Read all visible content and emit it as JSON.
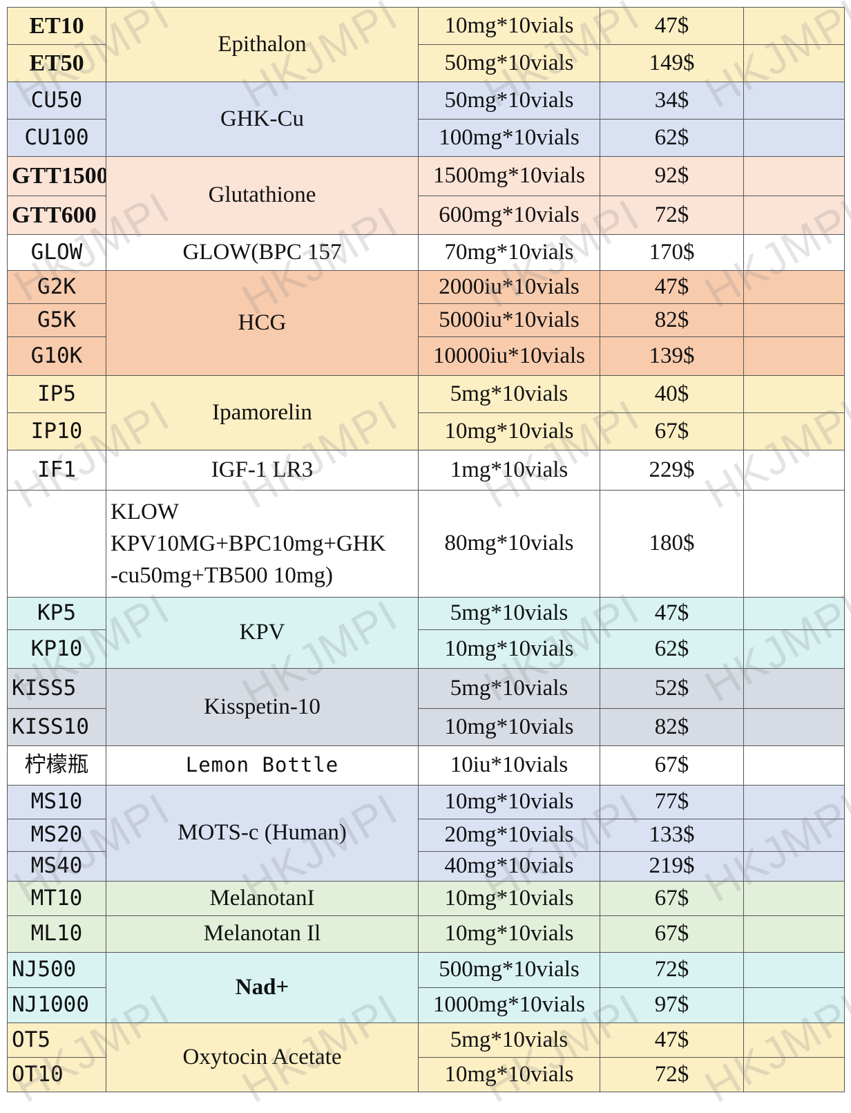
{
  "rows": [
    {
      "code": "ET10",
      "name": "Epithalon",
      "spec": "10mg*10vials",
      "price": "47$"
    },
    {
      "code": "ET50",
      "spec": "50mg*10vials",
      "price": "149$"
    },
    {
      "code": "CU50",
      "name": "GHK-Cu",
      "spec": "50mg*10vials",
      "price": "34$"
    },
    {
      "code": "CU100",
      "spec": "100mg*10vials",
      "price": "62$"
    },
    {
      "code": "GTT1500",
      "name": "Glutathione",
      "spec": "1500mg*10vials",
      "price": "92$"
    },
    {
      "code": "GTT600",
      "spec": "600mg*10vials",
      "price": "72$"
    },
    {
      "code": "GLOW",
      "name": "GLOW(BPC 157",
      "spec": "70mg*10vials",
      "price": "170$"
    },
    {
      "code": "G2K",
      "name": "HCG",
      "spec": "2000iu*10vials",
      "price": "47$"
    },
    {
      "code": "G5K",
      "spec": "5000iu*10vials",
      "price": "82$"
    },
    {
      "code": "G10K",
      "spec": "10000iu*10vials",
      "price": "139$"
    },
    {
      "code": "IP5",
      "name": "Ipamorelin",
      "spec": "5mg*10vials",
      "price": "40$"
    },
    {
      "code": "IP10",
      "spec": "10mg*10vials",
      "price": "67$"
    },
    {
      "code": "IF1",
      "name": "IGF-1 LR3",
      "spec": "1mg*10vials",
      "price": "229$"
    },
    {
      "code": "",
      "name_lines": [
        "KLOW",
        "KPV10MG+BPC10mg+GHK",
        "-cu50mg+TB500 10mg)"
      ],
      "spec": "80mg*10vials",
      "price": "180$"
    },
    {
      "code": "KP5",
      "name": "KPV",
      "spec": "5mg*10vials",
      "price": "47$"
    },
    {
      "code": "KP10",
      "spec": "10mg*10vials",
      "price": "62$"
    },
    {
      "code": "KISS5",
      "name": "Kisspetin-10",
      "spec": "5mg*10vials",
      "price": "52$"
    },
    {
      "code": "KISS10",
      "spec": "10mg*10vials",
      "price": "82$"
    },
    {
      "code": "柠檬瓶",
      "name": "Lemon Bottle",
      "spec": "10iu*10vials",
      "price": "67$"
    },
    {
      "code": "MS10",
      "name": "MOTS-c (Human)",
      "spec": "10mg*10vials",
      "price": "77$"
    },
    {
      "code": "MS20",
      "spec": "20mg*10vials",
      "price": "133$"
    },
    {
      "code": "MS40",
      "spec": "40mg*10vials",
      "price": "219$"
    },
    {
      "code": "MT10",
      "name": "MelanotanI",
      "spec": "10mg*10vials",
      "price": "67$"
    },
    {
      "code": "ML10",
      "name": "Melanotan Il",
      "spec": "10mg*10vials",
      "price": "67$"
    },
    {
      "code": "NJ500",
      "name": "Nad+",
      "spec": "500mg*10vials",
      "price": "72$"
    },
    {
      "code": "NJ1000",
      "spec": "1000mg*10vials",
      "price": "97$"
    },
    {
      "code": "OT5",
      "name": "Oxytocin Acetate",
      "spec": "5mg*10vials",
      "price": "47$"
    },
    {
      "code": "OT10",
      "spec": "10mg*10vials",
      "price": "72$"
    }
  ],
  "watermark": "HKJMPI",
  "colors": {
    "yellow": "#fcefc4",
    "blue": "#d9e1f3",
    "peach": "#fbe3d6",
    "orange": "#f8cbad",
    "white": "#ffffff",
    "cyan": "#d8f3f2",
    "gray": "#d7dce4",
    "green": "#e2efd9",
    "border": "#555555"
  }
}
